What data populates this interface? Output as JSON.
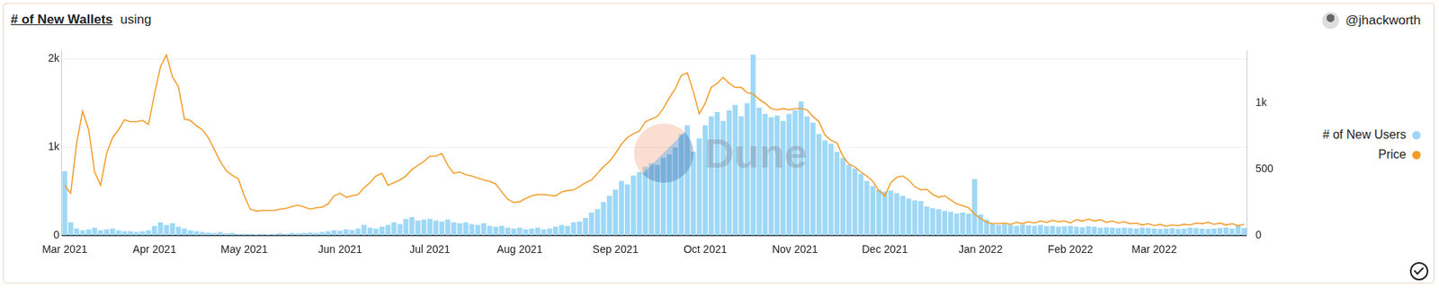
{
  "chart_data": {
    "type": "bar",
    "title": "# of New Wallets",
    "subtitle": "using",
    "author": "@jhackworth",
    "watermark": "Dune",
    "legend": "right",
    "grid": true,
    "categories": [
      "Mar 2021",
      null,
      null,
      null,
      null,
      null,
      null,
      null,
      null,
      null,
      null,
      null,
      null,
      null,
      null,
      "Apr 2021",
      null,
      null,
      null,
      null,
      null,
      null,
      null,
      null,
      null,
      null,
      null,
      null,
      null,
      null,
      "May 2021",
      null,
      null,
      null,
      null,
      null,
      null,
      null,
      null,
      null,
      null,
      null,
      null,
      null,
      null,
      null,
      "Jun 2021",
      null,
      null,
      null,
      null,
      null,
      null,
      null,
      null,
      null,
      null,
      null,
      null,
      null,
      null,
      "Jul 2021",
      null,
      null,
      null,
      null,
      null,
      null,
      null,
      null,
      null,
      null,
      null,
      null,
      null,
      null,
      "Aug 2021",
      null,
      null,
      null,
      null,
      null,
      null,
      null,
      null,
      null,
      null,
      null,
      null,
      null,
      null,
      null,
      "Sep 2021",
      null,
      null,
      null,
      null,
      null,
      null,
      null,
      null,
      null,
      null,
      null,
      null,
      null,
      null,
      "Oct 2021",
      null,
      null,
      null,
      null,
      null,
      null,
      null,
      null,
      null,
      null,
      null,
      null,
      null,
      null,
      "Nov 2021",
      null,
      null,
      null,
      null,
      null,
      null,
      null,
      null,
      null,
      null,
      null,
      null,
      null,
      null,
      "Dec 2021",
      null,
      null,
      null,
      null,
      null,
      null,
      null,
      null,
      null,
      null,
      null,
      null,
      null,
      null,
      null,
      "Jan 2022",
      null,
      null,
      null,
      null,
      null,
      null,
      null,
      null,
      null,
      null,
      null,
      null,
      null,
      null,
      "Feb 2022",
      null,
      null,
      null,
      null,
      null,
      null,
      null,
      null,
      null,
      null,
      null,
      null,
      null,
      "Mar 2022",
      null,
      null,
      null,
      null,
      null,
      null,
      null,
      null,
      null,
      null,
      null,
      null,
      null,
      null,
      null
    ],
    "ylim": [
      0,
      2100
    ],
    "yticks": [
      0,
      {
        "value": 1000,
        "label": "1k"
      },
      {
        "value": 2000,
        "label": "2k"
      }
    ],
    "y2lim": [
      0,
      1400
    ],
    "y2ticks": [
      0,
      500,
      {
        "value": 1000,
        "label": "1k"
      }
    ],
    "series": [
      {
        "name": "# of New Users",
        "type": "bar",
        "color": "#9fd8f6",
        "values": [
          730,
          150,
          80,
          60,
          70,
          90,
          60,
          70,
          80,
          60,
          50,
          50,
          40,
          50,
          60,
          110,
          150,
          120,
          140,
          100,
          80,
          60,
          50,
          40,
          35,
          30,
          40,
          25,
          30,
          20,
          20,
          20,
          15,
          20,
          15,
          20,
          25,
          20,
          30,
          25,
          30,
          35,
          30,
          40,
          50,
          60,
          55,
          70,
          65,
          80,
          120,
          90,
          80,
          100,
          120,
          150,
          130,
          190,
          210,
          170,
          180,
          190,
          170,
          160,
          180,
          150,
          140,
          150,
          130,
          120,
          140,
          110,
          100,
          110,
          90,
          80,
          90,
          70,
          80,
          90,
          70,
          80,
          100,
          120,
          110,
          150,
          160,
          200,
          260,
          300,
          380,
          450,
          520,
          620,
          580,
          680,
          720,
          780,
          820,
          800,
          880,
          920,
          1000,
          1150,
          1250,
          950,
          1100,
          1250,
          1350,
          1400,
          1300,
          1420,
          1480,
          1350,
          1500,
          2050,
          1450,
          1380,
          1340,
          1360,
          1300,
          1380,
          1420,
          1520,
          1350,
          1280,
          1150,
          1080,
          1040,
          950,
          880,
          800,
          760,
          700,
          620,
          560,
          520,
          500,
          510,
          480,
          450,
          420,
          400,
          390,
          330,
          310,
          300,
          280,
          270,
          250,
          260,
          250,
          640,
          240,
          180,
          140,
          120,
          130,
          120,
          110,
          125,
          115,
          110,
          120,
          105,
          110,
          100,
          105,
          110,
          100,
          95,
          105,
          100,
          90,
          95,
          90,
          85,
          90,
          85,
          80,
          90,
          85,
          80,
          75,
          80,
          85,
          75,
          80,
          90,
          85,
          80,
          75,
          80,
          85,
          90,
          80,
          120,
          85
        ]
      },
      {
        "name": "Price",
        "type": "line",
        "axis": "y2",
        "color": "#f39c2a",
        "values": [
          380,
          320,
          700,
          940,
          800,
          480,
          380,
          620,
          740,
          800,
          875,
          860,
          860,
          870,
          840,
          1070,
          1275,
          1365,
          1200,
          1125,
          880,
          870,
          830,
          800,
          740,
          650,
          560,
          490,
          455,
          430,
          300,
          200,
          185,
          190,
          190,
          190,
          200,
          205,
          220,
          230,
          215,
          200,
          210,
          215,
          240,
          300,
          320,
          290,
          300,
          310,
          360,
          400,
          450,
          470,
          380,
          400,
          420,
          450,
          500,
          530,
          560,
          600,
          600,
          620,
          530,
          470,
          480,
          460,
          450,
          435,
          420,
          410,
          390,
          330,
          275,
          250,
          255,
          280,
          300,
          310,
          310,
          305,
          300,
          330,
          340,
          345,
          370,
          400,
          420,
          470,
          520,
          560,
          620,
          690,
          740,
          770,
          790,
          860,
          880,
          900,
          960,
          1040,
          1110,
          1210,
          1230,
          1090,
          920,
          1000,
          1120,
          1150,
          1195,
          1150,
          1120,
          1120,
          1080,
          1070,
          1030,
          1000,
          960,
          950,
          960,
          950,
          960,
          960,
          950,
          900,
          860,
          760,
          720,
          700,
          600,
          540,
          520,
          480,
          450,
          410,
          340,
          300,
          400,
          440,
          450,
          420,
          370,
          345,
          350,
          310,
          290,
          300,
          270,
          240,
          225,
          210,
          160,
          130,
          100,
          90,
          90,
          95,
          85,
          100,
          90,
          105,
          95,
          110,
          100,
          115,
          105,
          110,
          95,
          120,
          110,
          125,
          110,
          120,
          100,
          110,
          95,
          105,
          90,
          95,
          80,
          90,
          75,
          85,
          70,
          80,
          75,
          85,
          80,
          95,
          90,
          100,
          85,
          95,
          80,
          90,
          75,
          85
        ]
      }
    ]
  }
}
